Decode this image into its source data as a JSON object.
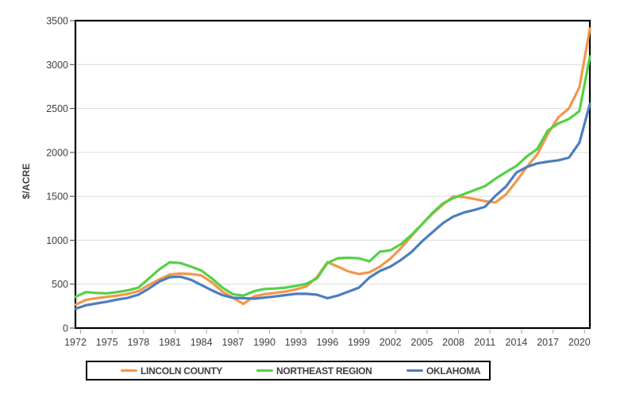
{
  "figure": {
    "type_note": "excel-line-chart",
    "background": "#FFFFFF",
    "border_color": "#D9D9D9",
    "plot_border_color": "#000000",
    "gridline_color": "#D9D9D9",
    "tick_text_color": "#404040"
  },
  "chart_data": {
    "type": "line",
    "title": "",
    "xlabel": "",
    "ylabel": "$/ACRE",
    "ylim": [
      0,
      3500
    ],
    "yticks": [
      0,
      500,
      1000,
      1500,
      2000,
      2500,
      3000,
      3500
    ],
    "xticks": [
      1972,
      1975,
      1978,
      1981,
      1984,
      1987,
      1990,
      1993,
      1996,
      1999,
      2002,
      2005,
      2008,
      2011,
      2014,
      2017,
      2020
    ],
    "grid": true,
    "legend_position": "bottom",
    "x": [
      1972,
      1973,
      1974,
      1975,
      1976,
      1977,
      1978,
      1979,
      1980,
      1981,
      1982,
      1983,
      1984,
      1985,
      1986,
      1987,
      1988,
      1989,
      1990,
      1991,
      1992,
      1993,
      1994,
      1995,
      1996,
      1997,
      1998,
      1999,
      2000,
      2001,
      2002,
      2003,
      2004,
      2005,
      2006,
      2007,
      2008,
      2009,
      2010,
      2011,
      2012,
      2013,
      2014,
      2015,
      2016,
      2017,
      2018,
      2019,
      2020,
      2021
    ],
    "series": [
      {
        "name": "LINCOLN COUNTY",
        "color": "#F2974A",
        "values": [
          265,
          320,
          340,
          355,
          370,
          390,
          420,
          490,
          555,
          610,
          620,
          615,
          600,
          520,
          415,
          345,
          275,
          360,
          385,
          400,
          415,
          440,
          475,
          580,
          750,
          700,
          645,
          615,
          635,
          700,
          790,
          910,
          1045,
          1180,
          1300,
          1405,
          1500,
          1490,
          1470,
          1445,
          1430,
          1520,
          1670,
          1835,
          1980,
          2210,
          2400,
          2500,
          2740,
          3410
        ]
      },
      {
        "name": "NORTHEAST REGION",
        "color": "#55D046",
        "values": [
          355,
          410,
          400,
          395,
          410,
          430,
          460,
          565,
          670,
          750,
          740,
          700,
          655,
          565,
          460,
          385,
          370,
          420,
          445,
          450,
          460,
          480,
          505,
          565,
          740,
          795,
          800,
          795,
          760,
          870,
          885,
          955,
          1060,
          1180,
          1310,
          1420,
          1480,
          1525,
          1570,
          1615,
          1700,
          1775,
          1845,
          1955,
          2040,
          2250,
          2330,
          2380,
          2470,
          3090
        ]
      },
      {
        "name": "OKLAHOMA",
        "color": "#4D7EBD",
        "values": [
          220,
          260,
          280,
          300,
          325,
          345,
          380,
          450,
          530,
          580,
          585,
          550,
          490,
          430,
          375,
          345,
          340,
          335,
          347,
          360,
          375,
          390,
          390,
          380,
          340,
          370,
          415,
          460,
          575,
          650,
          700,
          775,
          865,
          985,
          1090,
          1195,
          1270,
          1315,
          1345,
          1380,
          1505,
          1610,
          1770,
          1835,
          1875,
          1895,
          1910,
          1940,
          2110,
          2550
        ]
      }
    ]
  }
}
